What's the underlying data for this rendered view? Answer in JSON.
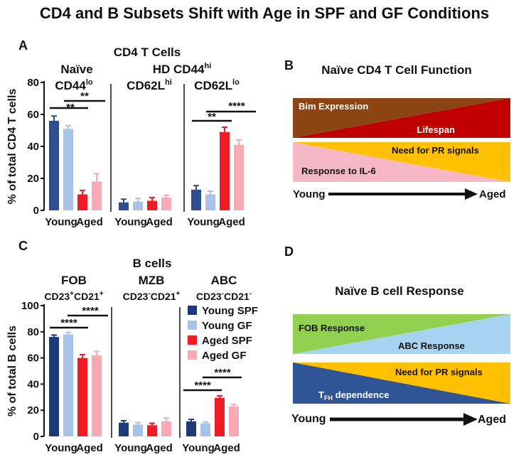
{
  "title": "CD4 and B Subsets Shift with Age in SPF and GF Conditions",
  "colors": {
    "young_spf": "#2e4f8f",
    "young_gf": "#a9c3e8",
    "aged_spf": "#ee1c24",
    "aged_gf": "#f7aab3",
    "young_spf_B": "#1f3a78",
    "brown": "#8b4513",
    "darkred": "#c00000",
    "pink": "#f7b8c6",
    "gold": "#ffc000",
    "green": "#92d050",
    "lightblue": "#a6d3f0",
    "navy": "#2f5597",
    "black": "#111111"
  },
  "panelA": {
    "letter": "A",
    "heading": "CD4  T Cells",
    "group1_line1": "Naïve",
    "group1_line2_base": "CD44",
    "group1_line2_sup": "lo",
    "group2_line1_base": "HD CD44",
    "group2_line1_sup": "hi",
    "group2_line2_base": "CD62L",
    "group2_line2_sup": "hi",
    "group3_line2_base": "CD62L",
    "group3_line2_sup": "lo",
    "sig1": "**",
    "sig2": "**",
    "sig3": "**",
    "sig4": "****"
  },
  "panelB": {
    "letter": "B",
    "title": "Naïve CD4 T Cell Function",
    "label_bim": "Bim Expression",
    "label_lifespan": "Lifespan",
    "label_pr": "Need for PR signals",
    "label_il6": "Response to IL-6",
    "young": "Young",
    "aged": "Aged"
  },
  "panelC": {
    "letter": "C",
    "heading": "B cells",
    "fob": "FOB",
    "fob_m1": "CD23",
    "fob_s1": "+",
    "fob_m2": "CD21",
    "fob_s2": "+",
    "mzb": "MZB",
    "mzb_m1": "CD23",
    "mzb_s1": "-",
    "mzb_m2": "CD21",
    "mzb_s2": "+",
    "abc": "ABC",
    "abc_m1": "CD23",
    "abc_s1": "-",
    "abc_m2": "CD21",
    "abc_s2": "-",
    "sig1": "****",
    "sig2": "****",
    "sig3": "****",
    "sig4": "****"
  },
  "panelD": {
    "letter": "D",
    "title": "Naïve B cell Response",
    "label_fob": "FOB Response",
    "label_abc": "ABC Response",
    "label_pr": "Need for PR signals",
    "label_tfh_base": "T",
    "label_tfh_sub": "FH",
    "label_tfh_rest": " dependence",
    "young": "Young",
    "aged": "Aged"
  },
  "chart_data": [
    {
      "type": "bar",
      "panel": "A",
      "title": "CD4  T Cells",
      "ylabel": "% of total CD4 T cells",
      "ylim": [
        0,
        80
      ],
      "yticks": [
        0,
        20,
        40,
        60,
        80
      ],
      "groups": [
        "Naïve CD44lo",
        "HD CD44hi CD62Lhi",
        "CD62Llo"
      ],
      "x_tick_labels": [
        "Young",
        "Aged"
      ],
      "series": [
        {
          "name": "Young SPF",
          "values": [
            56,
            5,
            13
          ],
          "errors": [
            3,
            2,
            2.5
          ]
        },
        {
          "name": "Young GF",
          "values": [
            51,
            5.5,
            10
          ],
          "errors": [
            2,
            2,
            2
          ]
        },
        {
          "name": "Aged SPF",
          "values": [
            10,
            6,
            49
          ],
          "errors": [
            2.5,
            2,
            3
          ]
        },
        {
          "name": "Aged GF",
          "values": [
            18,
            8,
            41
          ],
          "errors": [
            5,
            1.5,
            3
          ]
        }
      ]
    },
    {
      "type": "bar",
      "panel": "C",
      "title": "B cells",
      "ylabel": "% of total B cells",
      "ylim": [
        0,
        100
      ],
      "yticks": [
        0,
        20,
        40,
        60,
        80,
        100
      ],
      "groups": [
        "FOB CD23+CD21+",
        "MZB CD23-CD21+",
        "ABC CD23-CD21-"
      ],
      "x_tick_labels": [
        "Young",
        "Aged"
      ],
      "legend": [
        "Young SPF",
        "Young GF",
        "Aged SPF",
        "Aged GF"
      ],
      "series": [
        {
          "name": "Young SPF",
          "values": [
            76,
            10.5,
            11.5
          ],
          "errors": [
            1.5,
            1.5,
            1.5
          ]
        },
        {
          "name": "Young GF",
          "values": [
            78,
            9,
            10
          ],
          "errors": [
            1.5,
            1.5,
            1
          ]
        },
        {
          "name": "Aged SPF",
          "values": [
            60,
            8.5,
            29.5
          ],
          "errors": [
            2.5,
            1.5,
            1.5
          ]
        },
        {
          "name": "Aged GF",
          "values": [
            62,
            11.5,
            23
          ],
          "errors": [
            3,
            2.5,
            1.5
          ]
        }
      ]
    }
  ]
}
